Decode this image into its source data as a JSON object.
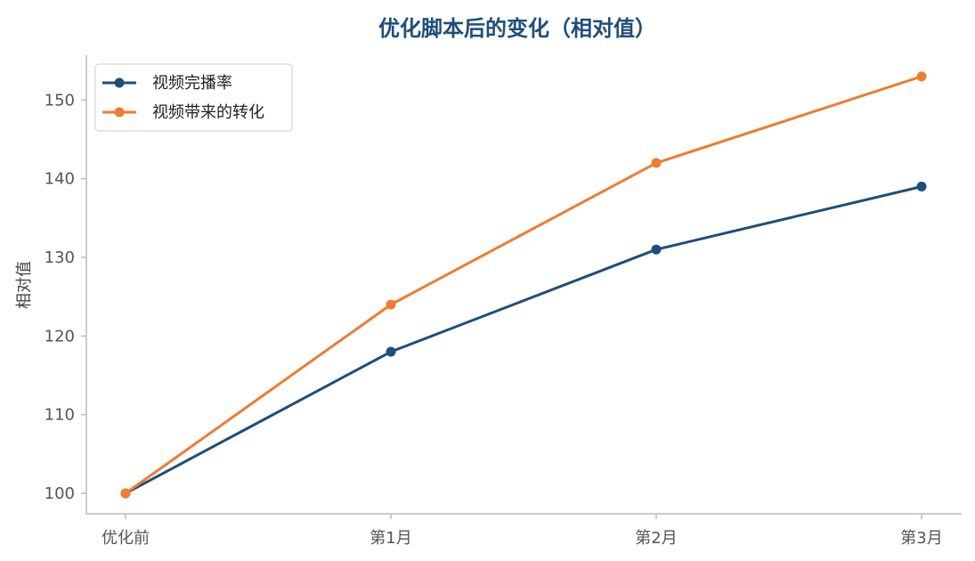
{
  "chart_data": {
    "type": "line",
    "title": "优化脚本后的变化（相对值）",
    "xlabel": "",
    "ylabel": "相对值",
    "categories": [
      "优化前",
      "第1月",
      "第2月",
      "第3月"
    ],
    "ylim": [
      97.4,
      155.7
    ],
    "yticks": [
      100,
      110,
      120,
      130,
      140,
      150
    ],
    "grid": false,
    "legend_position": "top-left",
    "series": [
      {
        "name": "视频完播率",
        "values": [
          100,
          118,
          131,
          139
        ],
        "color": "#1f4e79"
      },
      {
        "name": "视频带来的转化",
        "values": [
          100,
          124,
          142,
          153
        ],
        "color": "#ed7d31"
      }
    ],
    "title_color": "#1f4e79",
    "axis_color": "#bbbbbb"
  }
}
